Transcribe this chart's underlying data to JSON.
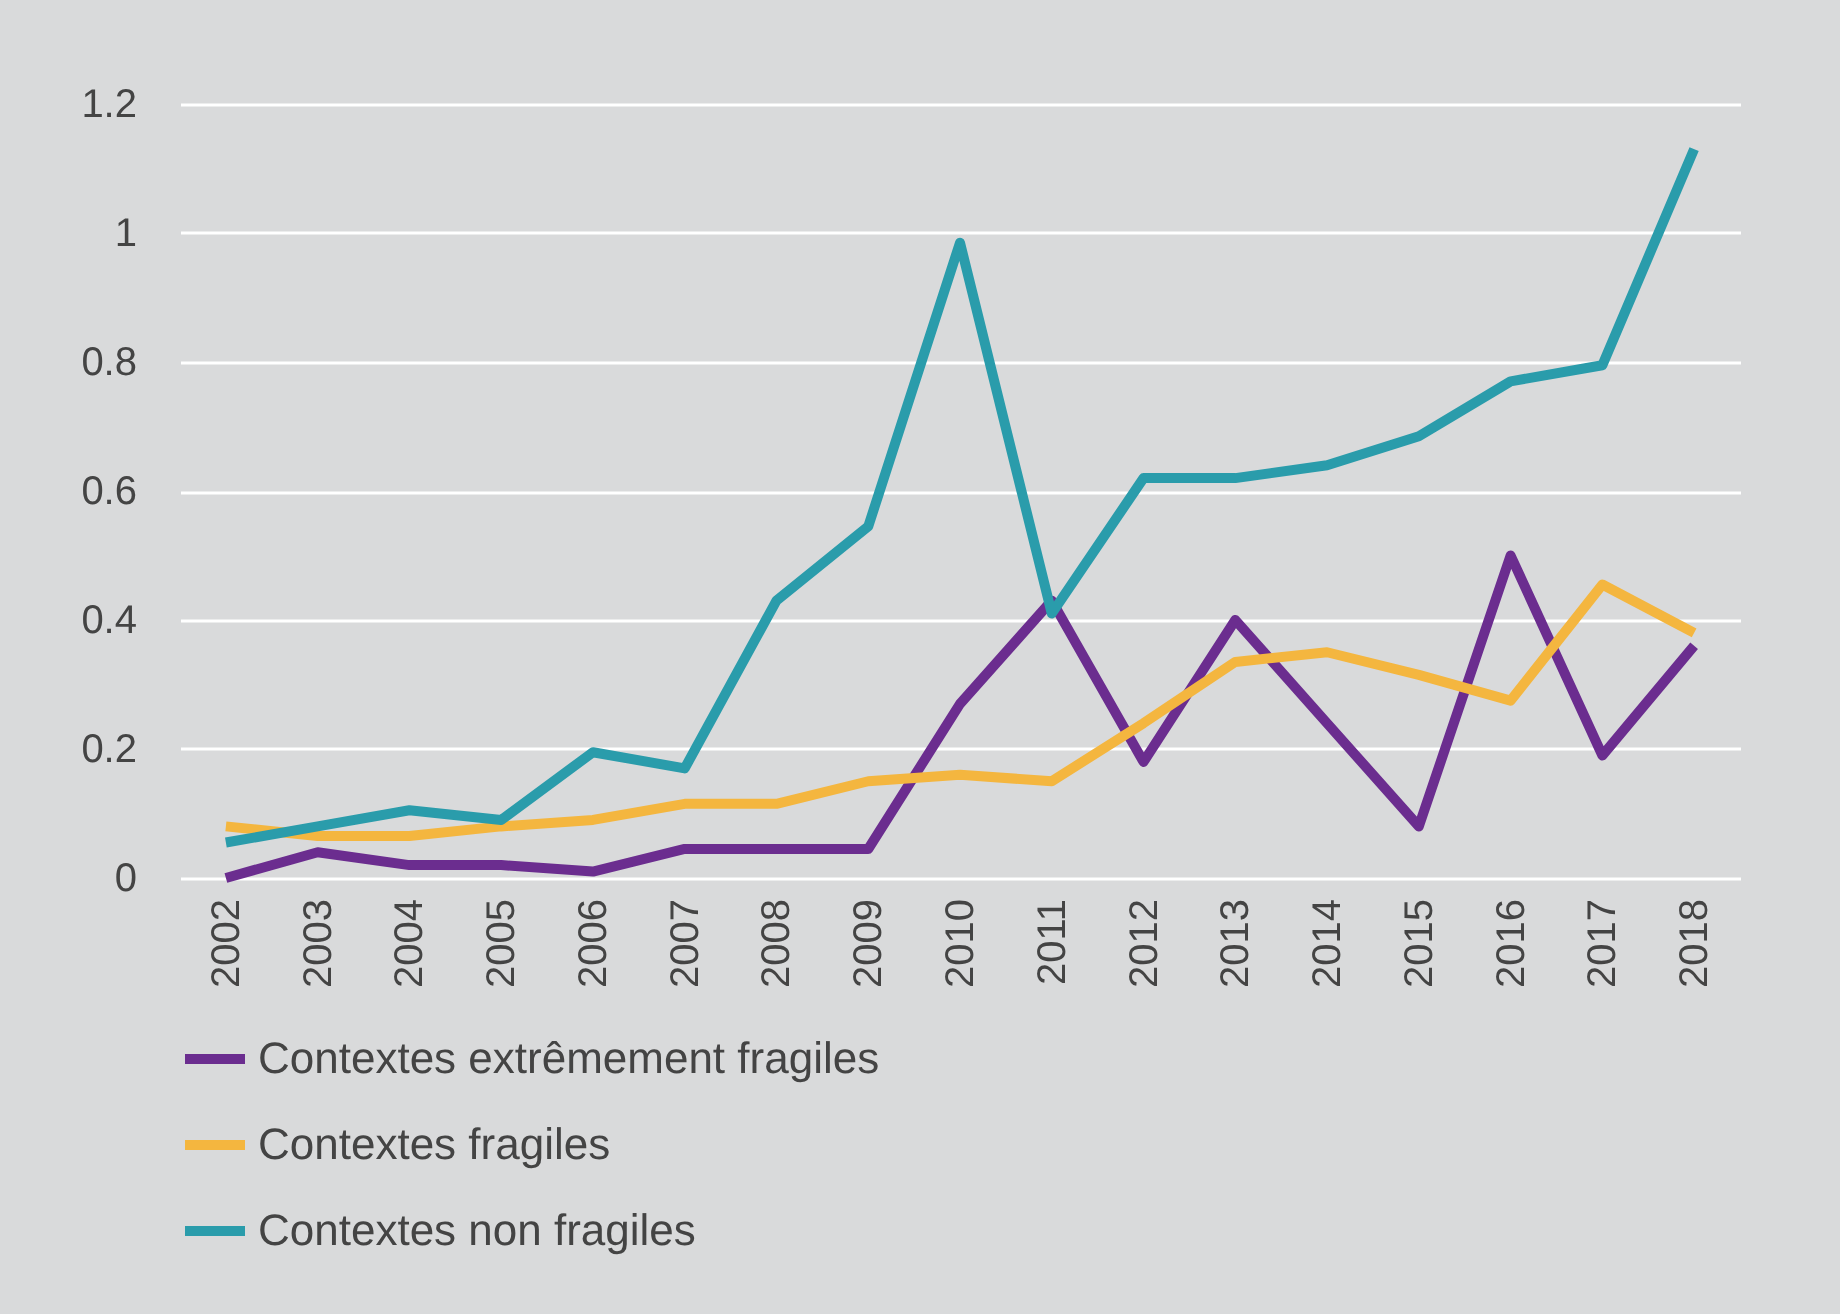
{
  "chart_data": {
    "type": "line",
    "categories": [
      "2002",
      "2003",
      "2004",
      "2005",
      "2006",
      "2007",
      "2008",
      "2009",
      "2010",
      "2011",
      "2012",
      "2013",
      "2014",
      "2015",
      "2016",
      "2017",
      "2018"
    ],
    "series": [
      {
        "name": "Contextes extrêmement fragiles",
        "color": "#6b2d8f",
        "values": [
          0.0,
          0.04,
          0.02,
          0.02,
          0.01,
          0.045,
          0.045,
          0.045,
          0.27,
          0.43,
          0.18,
          0.4,
          0.24,
          0.08,
          0.5,
          0.19,
          0.36
        ]
      },
      {
        "name": "Contextes fragiles",
        "color": "#f4b63f",
        "values": [
          0.08,
          0.065,
          0.065,
          0.08,
          0.09,
          0.115,
          0.115,
          0.15,
          0.16,
          0.15,
          0.24,
          0.335,
          0.35,
          0.315,
          0.275,
          0.455,
          0.38
        ]
      },
      {
        "name": "Contextes non fragiles",
        "color": "#2a9cab",
        "values": [
          0.055,
          0.08,
          0.105,
          0.09,
          0.195,
          0.17,
          0.43,
          0.545,
          0.985,
          0.41,
          0.62,
          0.62,
          0.64,
          0.685,
          0.77,
          0.795,
          1.13
        ]
      }
    ],
    "ylim": [
      0,
      1.2
    ],
    "yticks": [
      0,
      0.2,
      0.4,
      0.6,
      0.8,
      1,
      1.2
    ],
    "grid": "y",
    "legend": "bottom",
    "marker": "none",
    "line_style": "solid"
  }
}
